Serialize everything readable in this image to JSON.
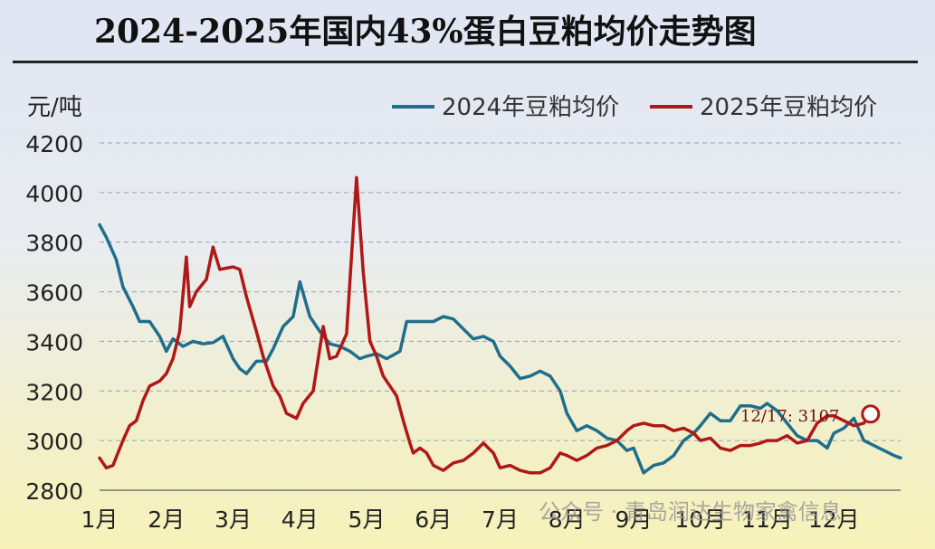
{
  "title": "2024-2025年国内43%蛋白豆粕均价走势图",
  "watermark": "公众号 · 青岛润达生物家禽信息",
  "chart_data": {
    "type": "line",
    "title": "2024-2025年国内43%蛋白豆粕均价走势图",
    "unit_label": "元/吨",
    "ylim": [
      2800,
      4200
    ],
    "y_ticks": [
      2800,
      3000,
      3200,
      3400,
      3600,
      3800,
      4000,
      4200
    ],
    "x_tick_labels": [
      "1月",
      "2月",
      "3月",
      "4月",
      "5月",
      "6月",
      "7月",
      "8月",
      "9月",
      "10月",
      "11月",
      "12月"
    ],
    "grid": true,
    "legend_position": "top-right",
    "annotation": {
      "text": "12/17: 3107",
      "x": 11.55,
      "y": 3107
    },
    "series": [
      {
        "name": "2024年豆粕均价",
        "color": "#1f6e8c",
        "x": [
          0.0,
          0.1,
          0.25,
          0.35,
          0.5,
          0.6,
          0.75,
          0.9,
          1.0,
          1.1,
          1.25,
          1.4,
          1.55,
          1.7,
          1.85,
          2.0,
          2.1,
          2.2,
          2.35,
          2.5,
          2.6,
          2.75,
          2.9,
          3.0,
          3.15,
          3.3,
          3.45,
          3.6,
          3.75,
          3.9,
          4.0,
          4.15,
          4.3,
          4.5,
          4.6,
          4.75,
          4.9,
          5.0,
          5.15,
          5.3,
          5.45,
          5.6,
          5.75,
          5.9,
          6.0,
          6.15,
          6.3,
          6.45,
          6.6,
          6.75,
          6.9,
          7.0,
          7.15,
          7.3,
          7.45,
          7.6,
          7.75,
          7.9,
          8.0,
          8.15,
          8.3,
          8.45,
          8.6,
          8.75,
          8.9,
          9.0,
          9.15,
          9.3,
          9.45,
          9.6,
          9.75,
          9.9,
          10.0,
          10.15,
          10.3,
          10.45,
          10.6,
          10.75,
          10.9,
          11.0,
          11.15,
          11.3,
          11.45,
          11.6,
          11.75,
          11.9,
          12.0
        ],
        "values": [
          3870,
          3820,
          3730,
          3620,
          3540,
          3480,
          3480,
          3420,
          3360,
          3410,
          3380,
          3400,
          3390,
          3395,
          3420,
          3330,
          3290,
          3270,
          3320,
          3320,
          3370,
          3460,
          3500,
          3640,
          3500,
          3440,
          3390,
          3380,
          3360,
          3330,
          3340,
          3350,
          3330,
          3360,
          3480,
          3480,
          3480,
          3480,
          3500,
          3490,
          3450,
          3410,
          3420,
          3400,
          3340,
          3300,
          3250,
          3260,
          3280,
          3260,
          3200,
          3110,
          3040,
          3060,
          3040,
          3010,
          3000,
          2960,
          2970,
          2870,
          2900,
          2910,
          2940,
          3000,
          3030,
          3060,
          3110,
          3080,
          3080,
          3140,
          3140,
          3130,
          3150,
          3120,
          3070,
          3020,
          3000,
          3000,
          2970,
          3030,
          3050,
          3090,
          3000,
          2980,
          2960,
          2940,
          2930
        ]
      },
      {
        "name": "2025年豆粕均价",
        "color": "#b01818",
        "x": [
          0.0,
          0.1,
          0.2,
          0.35,
          0.45,
          0.55,
          0.65,
          0.75,
          0.9,
          1.0,
          1.1,
          1.2,
          1.3,
          1.35,
          1.45,
          1.6,
          1.7,
          1.8,
          2.0,
          2.1,
          2.2,
          2.35,
          2.45,
          2.6,
          2.7,
          2.8,
          2.95,
          3.05,
          3.2,
          3.35,
          3.45,
          3.55,
          3.7,
          3.85,
          3.95,
          4.05,
          4.15,
          4.25,
          4.35,
          4.45,
          4.55,
          4.65,
          4.7,
          4.8,
          4.9,
          5.0,
          5.15,
          5.3,
          5.45,
          5.6,
          5.75,
          5.9,
          6.0,
          6.15,
          6.3,
          6.45,
          6.6,
          6.75,
          6.9,
          7.0,
          7.15,
          7.3,
          7.45,
          7.6,
          7.75,
          7.9,
          8.0,
          8.15,
          8.3,
          8.45,
          8.6,
          8.75,
          8.9,
          9.0,
          9.15,
          9.3,
          9.45,
          9.6,
          9.75,
          9.9,
          10.0,
          10.15,
          10.3,
          10.45,
          10.6,
          10.75,
          10.9,
          11.0,
          11.15,
          11.3,
          11.45,
          11.55
        ],
        "values": [
          2930,
          2890,
          2900,
          3000,
          3060,
          3080,
          3160,
          3220,
          3240,
          3270,
          3330,
          3440,
          3740,
          3540,
          3600,
          3650,
          3780,
          3690,
          3700,
          3690,
          3580,
          3440,
          3340,
          3220,
          3180,
          3110,
          3090,
          3150,
          3200,
          3460,
          3330,
          3340,
          3430,
          4060,
          3680,
          3400,
          3340,
          3260,
          3220,
          3180,
          3080,
          2990,
          2950,
          2970,
          2950,
          2900,
          2880,
          2910,
          2920,
          2950,
          2990,
          2950,
          2890,
          2900,
          2880,
          2870,
          2870,
          2890,
          2950,
          2940,
          2920,
          2940,
          2970,
          2980,
          3000,
          3040,
          3060,
          3070,
          3060,
          3060,
          3040,
          3050,
          3030,
          3000,
          3010,
          2970,
          2960,
          2980,
          2980,
          2990,
          3000,
          3000,
          3020,
          2990,
          3000,
          3070,
          3100,
          3100,
          3080,
          3060,
          3070,
          3107
        ]
      }
    ]
  }
}
